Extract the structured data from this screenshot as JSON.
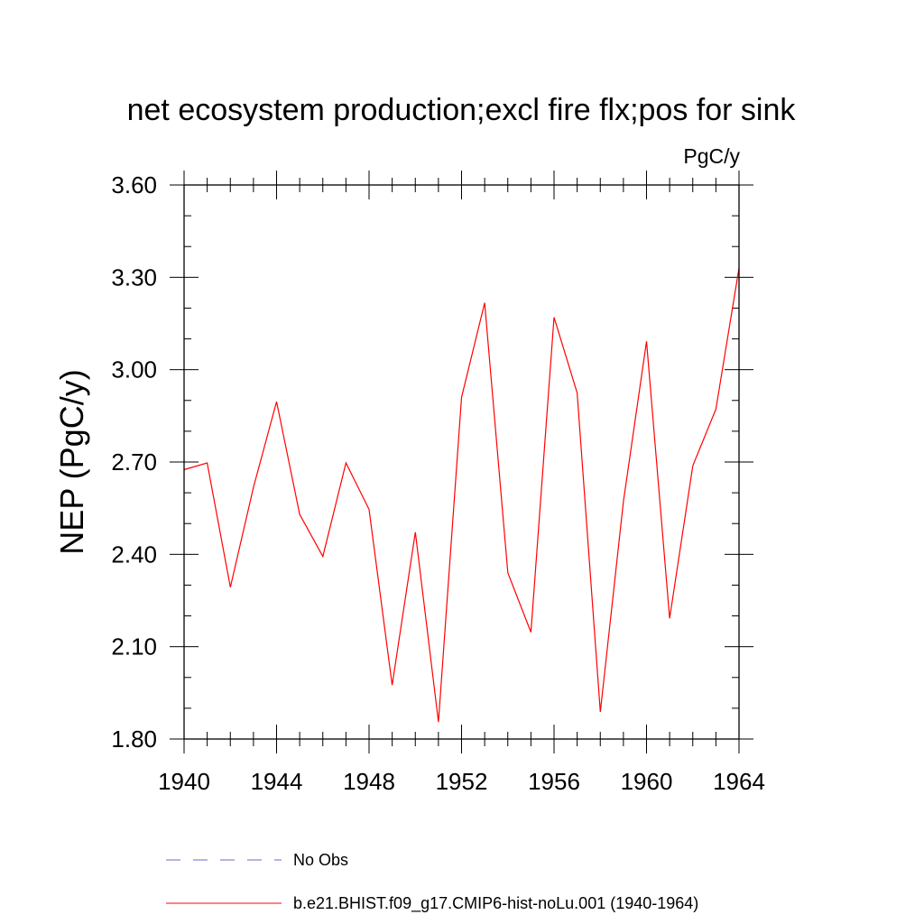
{
  "chart_data": {
    "type": "line",
    "title": "net ecosystem production;excl fire flx;pos for sink",
    "units_label": "PgC/y",
    "ylabel": "NEP  (PgC/y)",
    "xlabel": "",
    "xlim": [
      1940,
      1964
    ],
    "ylim": [
      1.8,
      3.6
    ],
    "x_ticks": [
      1940,
      1944,
      1948,
      1952,
      1956,
      1960,
      1964
    ],
    "x_tick_labels": [
      "1940",
      "1944",
      "1948",
      "1952",
      "1956",
      "1960",
      "1964"
    ],
    "y_ticks": [
      1.8,
      2.1,
      2.4,
      2.7,
      3.0,
      3.3,
      3.6
    ],
    "y_tick_labels": [
      "1.80",
      "2.10",
      "2.40",
      "2.70",
      "3.00",
      "3.30",
      "3.60"
    ],
    "grid": false,
    "legend_position": "bottom",
    "series": [
      {
        "name": "b.e21.BHIST.f09_g17.CMIP6-hist-noLu.001 (1940-1964)",
        "color": "#ff0000",
        "style": "solid",
        "x": [
          1940,
          1941,
          1942,
          1943,
          1944,
          1945,
          1946,
          1947,
          1948,
          1949,
          1950,
          1951,
          1952,
          1953,
          1954,
          1955,
          1956,
          1957,
          1958,
          1959,
          1960,
          1961,
          1962,
          1963,
          1964
        ],
        "values": [
          2.675,
          2.697,
          2.293,
          2.618,
          2.896,
          2.53,
          2.393,
          2.697,
          2.546,
          1.975,
          2.472,
          1.855,
          2.91,
          3.217,
          2.34,
          2.147,
          3.17,
          2.925,
          1.888,
          2.572,
          3.092,
          2.192,
          2.688,
          2.872,
          3.33
        ]
      }
    ],
    "legend_entries": [
      {
        "label": "No Obs",
        "color": "#6a6ad0",
        "style": "dashed"
      },
      {
        "label": "b.e21.BHIST.f09_g17.CMIP6-hist-noLu.001 (1940-1964)",
        "color": "#ff0000",
        "style": "solid"
      }
    ]
  }
}
